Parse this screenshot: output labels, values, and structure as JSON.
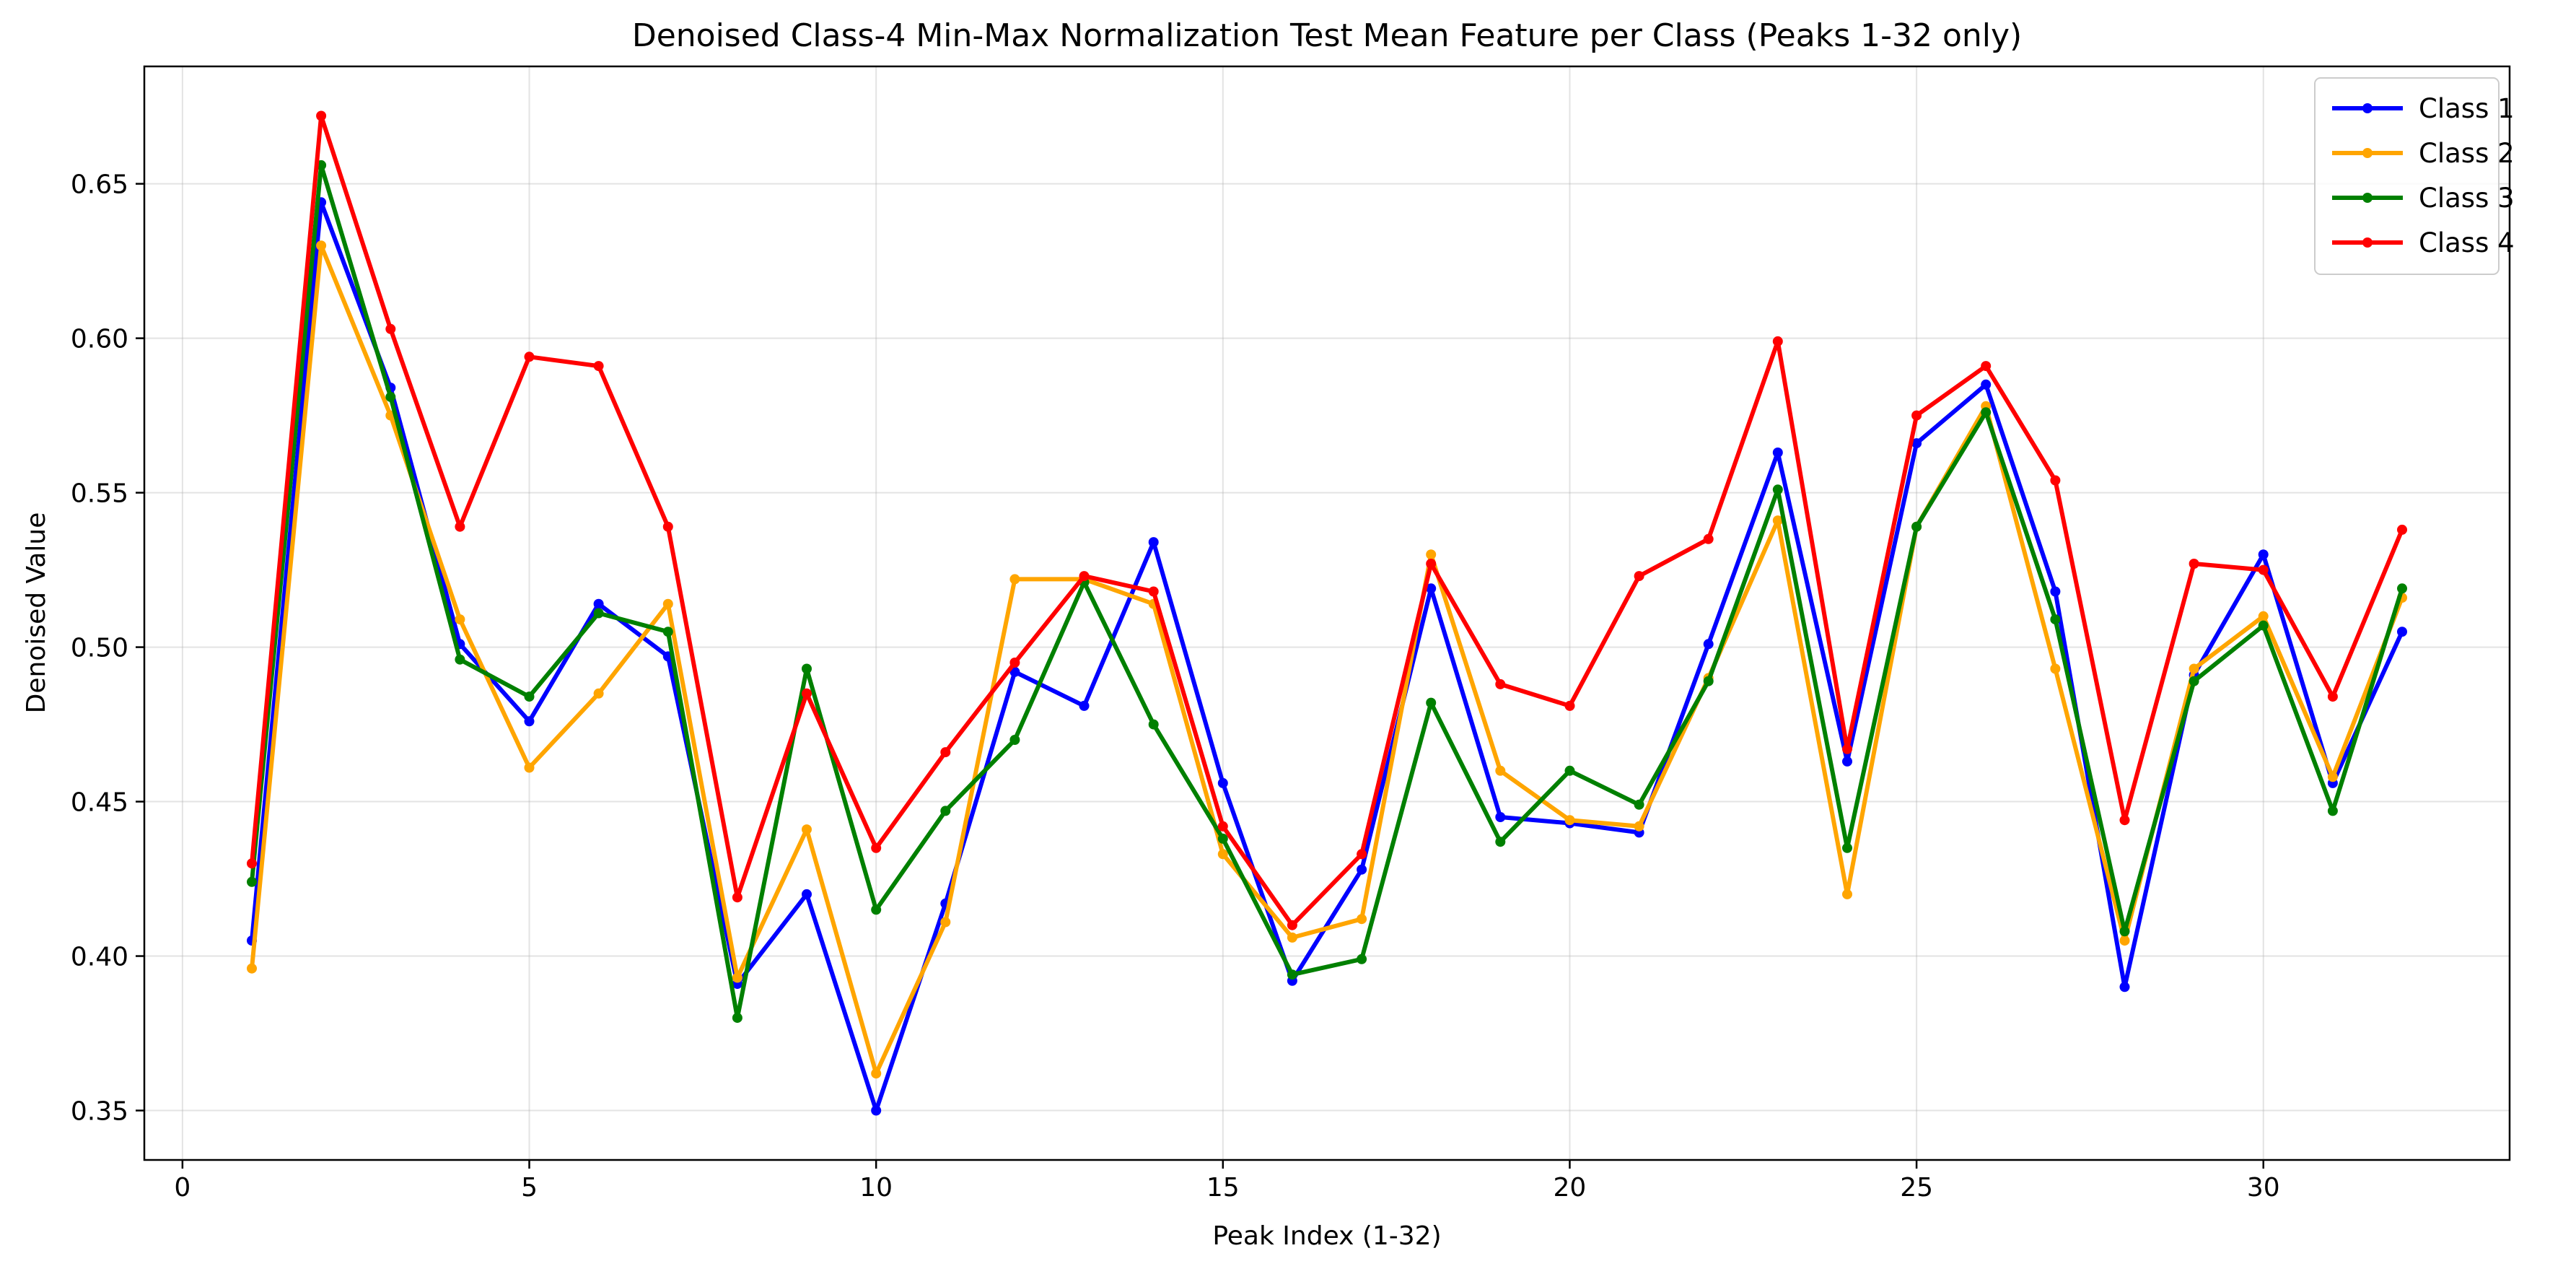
{
  "chart_data": {
    "type": "line",
    "title": "Denoised Class-4 Min-Max Normalization Test Mean Feature per Class (Peaks 1-32 only)",
    "xlabel": "Peak Index (1-32)",
    "ylabel": "Denoised Value",
    "xlim": [
      -0.55,
      33.55
    ],
    "ylim": [
      0.334,
      0.688
    ],
    "xticks": [
      0,
      5,
      10,
      15,
      20,
      25,
      30
    ],
    "yticks": [
      0.35,
      0.4,
      0.45,
      0.5,
      0.55,
      0.6,
      0.65
    ],
    "xtick_labels": [
      "0",
      "5",
      "10",
      "15",
      "20",
      "25",
      "30"
    ],
    "ytick_labels": [
      "0.35",
      "0.40",
      "0.45",
      "0.50",
      "0.55",
      "0.60",
      "0.65"
    ],
    "grid": true,
    "legend_position": "top-right",
    "x": [
      1,
      2,
      3,
      4,
      5,
      6,
      7,
      8,
      9,
      10,
      11,
      12,
      13,
      14,
      15,
      16,
      17,
      18,
      19,
      20,
      21,
      22,
      23,
      24,
      25,
      26,
      27,
      28,
      29,
      30,
      31,
      32
    ],
    "series": [
      {
        "name": "Class 1",
        "color": "#0000ff",
        "values": [
          0.405,
          0.644,
          0.584,
          0.501,
          0.476,
          0.514,
          0.497,
          0.391,
          0.42,
          0.35,
          0.417,
          0.492,
          0.481,
          0.534,
          0.456,
          0.392,
          0.428,
          0.519,
          0.445,
          0.443,
          0.44,
          0.501,
          0.563,
          0.463,
          0.566,
          0.585,
          0.518,
          0.39,
          0.491,
          0.53,
          0.456,
          0.505
        ]
      },
      {
        "name": "Class 2",
        "color": "#ffa500",
        "values": [
          0.396,
          0.63,
          0.575,
          0.509,
          0.461,
          0.485,
          0.514,
          0.393,
          0.441,
          0.362,
          0.411,
          0.522,
          0.522,
          0.514,
          0.433,
          0.406,
          0.412,
          0.53,
          0.46,
          0.444,
          0.442,
          0.49,
          0.541,
          0.42,
          0.539,
          0.578,
          0.493,
          0.405,
          0.493,
          0.51,
          0.458,
          0.516
        ]
      },
      {
        "name": "Class 3",
        "color": "#008000",
        "values": [
          0.424,
          0.656,
          0.581,
          0.496,
          0.484,
          0.511,
          0.505,
          0.38,
          0.493,
          0.415,
          0.447,
          0.47,
          0.521,
          0.475,
          0.438,
          0.394,
          0.399,
          0.482,
          0.437,
          0.46,
          0.449,
          0.489,
          0.551,
          0.435,
          0.539,
          0.576,
          0.509,
          0.408,
          0.489,
          0.507,
          0.447,
          0.519
        ]
      },
      {
        "name": "Class 4",
        "color": "#ff0000",
        "values": [
          0.43,
          0.672,
          0.603,
          0.539,
          0.594,
          0.591,
          0.539,
          0.419,
          0.485,
          0.435,
          0.466,
          0.495,
          0.523,
          0.518,
          0.442,
          0.41,
          0.433,
          0.527,
          0.488,
          0.481,
          0.523,
          0.535,
          0.599,
          0.467,
          0.575,
          0.591,
          0.554,
          0.444,
          0.527,
          0.525,
          0.484,
          0.538
        ]
      }
    ]
  }
}
